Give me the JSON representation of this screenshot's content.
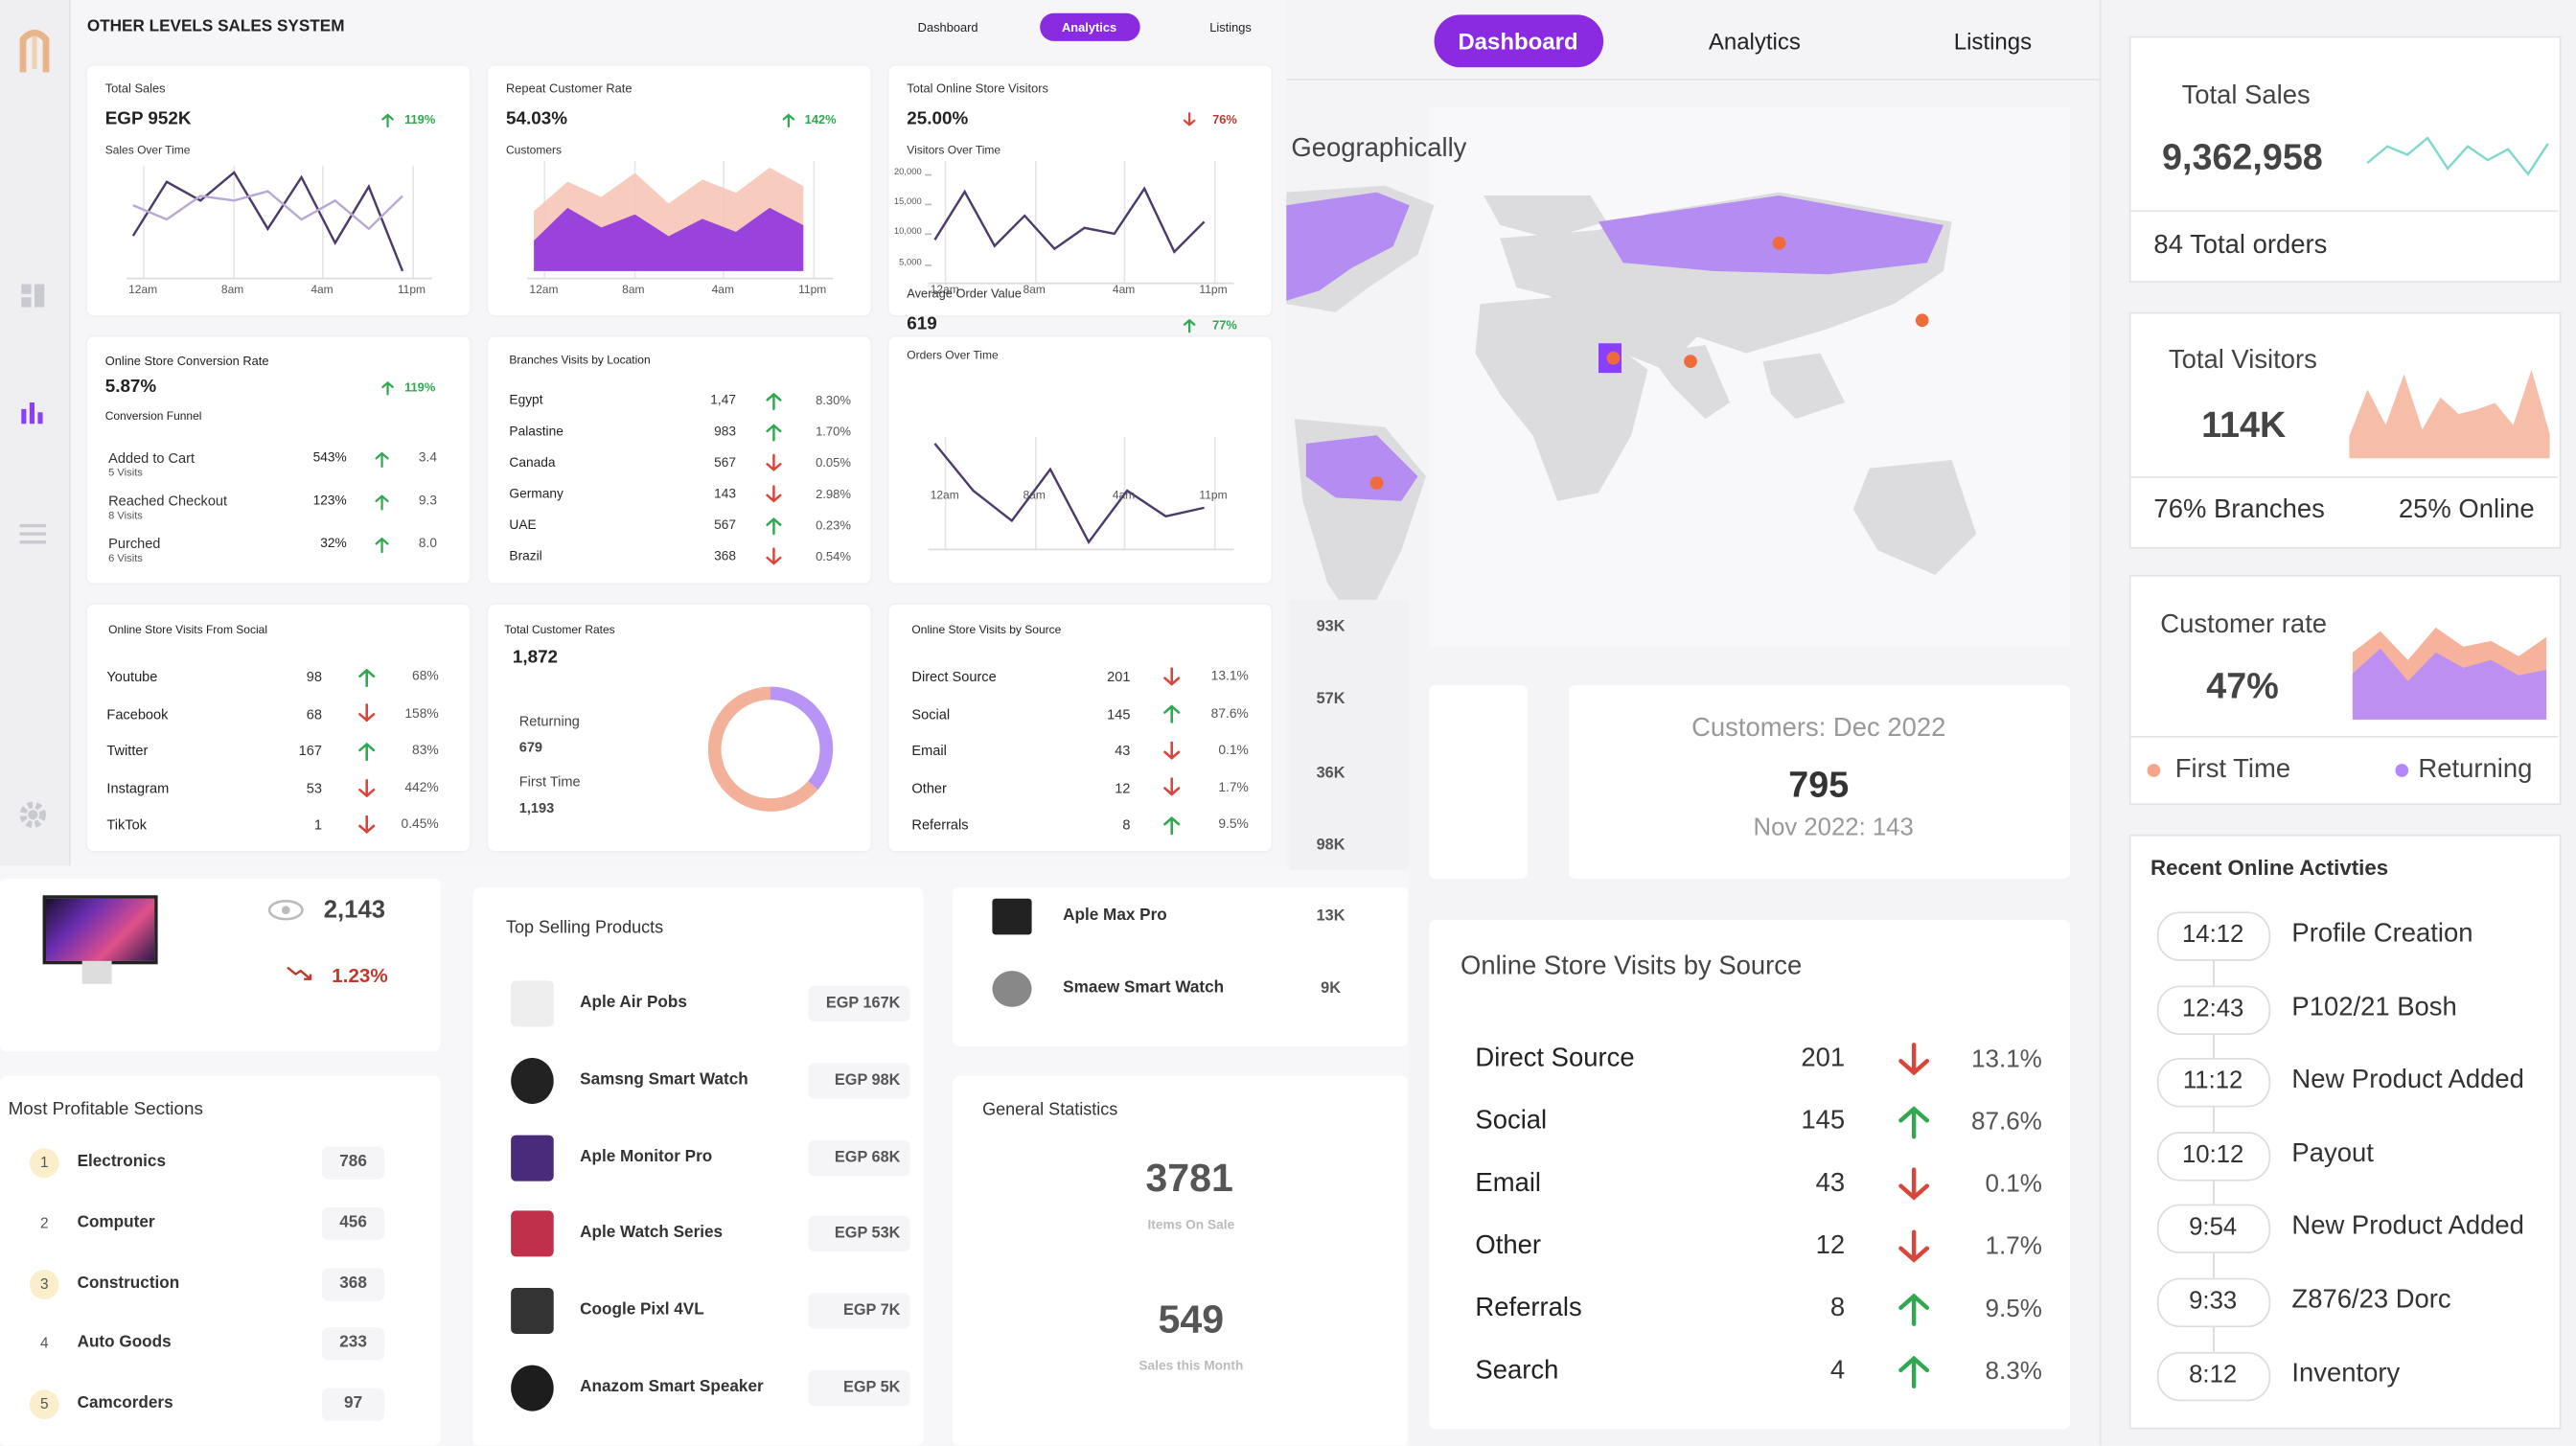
{
  "header": {
    "title": "OTHER LEVELS SALES SYSTEM",
    "tabs": [
      "Dashboard",
      "Analytics",
      "Listings"
    ],
    "active_tab": 1
  },
  "sales_card": {
    "label": "Total Sales",
    "value": "EGP 952K",
    "change": "119%",
    "trend": "up",
    "chart_label": "Sales Over Time",
    "x_labels": [
      "12am",
      "8am",
      "4am",
      "11pm"
    ],
    "chart": "line",
    "series": [
      {
        "color": "#4b3a6b",
        "values": [
          45,
          68,
          60,
          72,
          48,
          70,
          42,
          66,
          30
        ]
      },
      {
        "color": "#b9a7d6",
        "values": [
          58,
          52,
          62,
          60,
          64,
          52,
          60,
          48,
          62
        ]
      }
    ]
  },
  "repeat_card": {
    "label": "Repeat Customer Rate",
    "value": "54.03%",
    "change": "142%",
    "trend": "up",
    "chart_label": "Customers",
    "x_labels": [
      "12am",
      "8am",
      "4am",
      "11pm"
    ],
    "chart": "area",
    "series": [
      {
        "color": "#f6c2b2",
        "values": [
          55,
          82,
          68,
          90,
          62,
          84,
          72,
          95,
          78
        ]
      },
      {
        "color": "#8a2be2",
        "values": [
          28,
          58,
          40,
          52,
          32,
          48,
          36,
          58,
          42
        ]
      }
    ]
  },
  "visitors_card": {
    "label": "Total Online Store Visitors",
    "value": "25.00%",
    "change": "76%",
    "trend": "down",
    "chart_label": "Visitors Over Time",
    "x_labels": [
      "12am",
      "8am",
      "4am",
      "11pm"
    ],
    "chart": "line",
    "ylim": [
      3000,
      21000
    ],
    "yticks": [
      {
        "value": 20000,
        "label": "20,000"
      },
      {
        "value": 15000,
        "label": "15,000"
      },
      {
        "value": 10000,
        "label": "10,000"
      },
      {
        "value": 5000,
        "label": "5,000"
      }
    ],
    "series": [
      {
        "color": "#4b3a6b",
        "values": [
          9000,
          17000,
          8000,
          13000,
          7500,
          11000,
          10000,
          17500,
          7000,
          12000
        ]
      }
    ]
  },
  "conversion_card": {
    "label": "Online Store Conversion Rate",
    "value": "5.87%",
    "change": "119%",
    "trend": "up",
    "chart_label": "Conversion Funnel",
    "rows": [
      {
        "name": "Added to Cart",
        "sub": "5 Visits",
        "pct": "543%",
        "trend": "up",
        "value": "3.4"
      },
      {
        "name": "Reached Checkout",
        "sub": "8 Visits",
        "pct": "123%",
        "trend": "up",
        "value": "9.3"
      },
      {
        "name": "Purched",
        "sub": "6 Visits",
        "pct": "32%",
        "trend": "up",
        "value": "8.0"
      }
    ]
  },
  "branches_card": {
    "title": "Branches Visits by Location",
    "rows": [
      {
        "name": "Egypt",
        "value": "1,47",
        "trend": "up",
        "pct": "8.30%"
      },
      {
        "name": "Palastine",
        "value": "983",
        "trend": "up",
        "pct": "1.70%"
      },
      {
        "name": "Canada",
        "value": "567",
        "trend": "down",
        "pct": "0.05%"
      },
      {
        "name": "Germany",
        "value": "143",
        "trend": "down",
        "pct": "2.98%"
      },
      {
        "name": "UAE",
        "value": "567",
        "trend": "up",
        "pct": "0.23%"
      },
      {
        "name": "Brazil",
        "value": "368",
        "trend": "down",
        "pct": "0.54%"
      }
    ]
  },
  "order_card": {
    "label": "Average Order Value",
    "value": "619",
    "change": "77%",
    "trend": "up",
    "chart_label": "Orders Over Time",
    "x_labels": [
      "12am",
      "8am",
      "4am",
      "11pm"
    ],
    "chart": "line",
    "series": [
      {
        "color": "#4b3a6b",
        "values": [
          80,
          58,
          44,
          68,
          34,
          58,
          46,
          50
        ]
      }
    ]
  },
  "social_card": {
    "title": "Online Store Visits From Social",
    "rows": [
      {
        "name": "Youtube",
        "value": "98",
        "trend": "up",
        "pct": "68%"
      },
      {
        "name": "Facebook",
        "value": "68",
        "trend": "down",
        "pct": "158%"
      },
      {
        "name": "Twitter",
        "value": "167",
        "trend": "up",
        "pct": "83%"
      },
      {
        "name": "Instagram",
        "value": "53",
        "trend": "down",
        "pct": "442%"
      },
      {
        "name": "TikTok",
        "value": "1",
        "trend": "down",
        "pct": "0.45%"
      }
    ]
  },
  "customer_rates_card": {
    "title": "Total Customer Rates",
    "total": "1,872",
    "segments": [
      {
        "name": "Returning",
        "value": 679,
        "value_label": "679",
        "color": "#b794f6"
      },
      {
        "name": "First Time",
        "value": 1193,
        "value_label": "1,193",
        "color": "#f4b19a"
      }
    ]
  },
  "source_card": {
    "title": "Online Store Visits by Source",
    "rows": [
      {
        "name": "Direct Source",
        "value": "201",
        "trend": "down",
        "pct": "13.1%"
      },
      {
        "name": "Social",
        "value": "145",
        "trend": "up",
        "pct": "87.6%"
      },
      {
        "name": "Email",
        "value": "43",
        "trend": "down",
        "pct": "0.1%"
      },
      {
        "name": "Other",
        "value": "12",
        "trend": "down",
        "pct": "1.7%"
      },
      {
        "name": "Referrals",
        "value": "8",
        "trend": "up",
        "pct": "9.5%"
      }
    ]
  },
  "product_views": {
    "views": "2,143",
    "change": "1.23%",
    "trend": "down"
  },
  "profitable_sections": {
    "title": "Most Profitable Sections",
    "rows": [
      {
        "rank": "1",
        "name": "Electronics",
        "value": "786"
      },
      {
        "rank": "2",
        "name": "Computer",
        "value": "456"
      },
      {
        "rank": "3",
        "name": "Construction",
        "value": "368"
      },
      {
        "rank": "4",
        "name": "Auto Goods",
        "value": "233"
      },
      {
        "rank": "5",
        "name": "Camcorders",
        "value": "97"
      }
    ]
  },
  "top_products": {
    "title": "Top Selling Products",
    "rows": [
      {
        "name": "Aple Air Pobs",
        "value": "EGP 167K"
      },
      {
        "name": "Samsng Smart Watch",
        "value": "EGP 98K"
      },
      {
        "name": "Aple Monitor Pro",
        "value": "EGP 68K"
      },
      {
        "name": "Aple Watch Series",
        "value": "EGP 53K"
      },
      {
        "name": "Coogle Pixl 4VL",
        "value": "EGP 7K"
      },
      {
        "name": "Anazom Smart Speaker",
        "value": "EGP 5K"
      }
    ]
  },
  "side_numbers": [
    "93K",
    "57K",
    "36K",
    "98K"
  ],
  "more_products": {
    "rows": [
      {
        "name": "Aple Max Pro",
        "value": "13K"
      },
      {
        "name": "Smaew Smart Watch",
        "value": "9K"
      }
    ]
  },
  "general_statistics": {
    "title": "General Statistics",
    "items_value": "3781",
    "items_label": "Items On Sale",
    "sales_value": "549",
    "sales_label": "Sales this Month"
  },
  "main_tabs": {
    "tabs": [
      "Dashboard",
      "Analytics",
      "Listings"
    ],
    "active_tab": 0
  },
  "geography": {
    "title": "Geographically"
  },
  "customers_card": {
    "title": "Customers: Dec 2022",
    "value": "795",
    "previous": "Nov 2022: 143"
  },
  "visits_by_source": {
    "title": "Online Store Visits by Source",
    "rows": [
      {
        "name": "Direct Source",
        "value": "201",
        "trend": "down",
        "pct": "13.1%"
      },
      {
        "name": "Social",
        "value": "145",
        "trend": "up",
        "pct": "87.6%"
      },
      {
        "name": "Email",
        "value": "43",
        "trend": "down",
        "pct": "0.1%"
      },
      {
        "name": "Other",
        "value": "12",
        "trend": "down",
        "pct": "1.7%"
      },
      {
        "name": "Referrals",
        "value": "8",
        "trend": "up",
        "pct": "9.5%"
      },
      {
        "name": "Search",
        "value": "4",
        "trend": "up",
        "pct": "8.3%"
      }
    ]
  },
  "total_sales": {
    "label": "Total Sales",
    "value": "9,362,958",
    "orders": "84 Total orders",
    "chart": "line",
    "series": [
      {
        "color": "#7fd8cc",
        "values": [
          48,
          60,
          54,
          66,
          44,
          60,
          50,
          58,
          40,
          62
        ]
      }
    ]
  },
  "total_visitors": {
    "label": "Total Visitors",
    "value": "114K",
    "branches": "76%  Branches",
    "online": "25%  Online",
    "chart": "area",
    "series": [
      {
        "color": "#f4b19a",
        "values": [
          20,
          62,
          30,
          76,
          26,
          55,
          40,
          44,
          50,
          30,
          80,
          22
        ]
      }
    ]
  },
  "customer_rate": {
    "label": "Customer rate",
    "value": "47%",
    "chart": "area",
    "series": [
      {
        "name": "First Time",
        "color": "#f4a58a",
        "values": [
          70,
          92,
          62,
          96,
          76,
          82,
          66,
          86
        ]
      },
      {
        "name": "Returning",
        "color": "#b388ff",
        "values": [
          48,
          74,
          40,
          70,
          54,
          62,
          46,
          52
        ]
      }
    ]
  },
  "recent_activities": {
    "title": "Recent Online Activties",
    "rows": [
      {
        "time": "14:12",
        "label": "Profile Creation"
      },
      {
        "time": "12:43",
        "label": "P102/21 Bosh"
      },
      {
        "time": "11:12",
        "label": "New Product Added"
      },
      {
        "time": "10:12",
        "label": "Payout"
      },
      {
        "time": "9:54",
        "label": "New Product Added"
      },
      {
        "time": "9:33",
        "label": "Z876/23 Dorc"
      },
      {
        "time": "8:12",
        "label": "Inventory"
      }
    ]
  }
}
